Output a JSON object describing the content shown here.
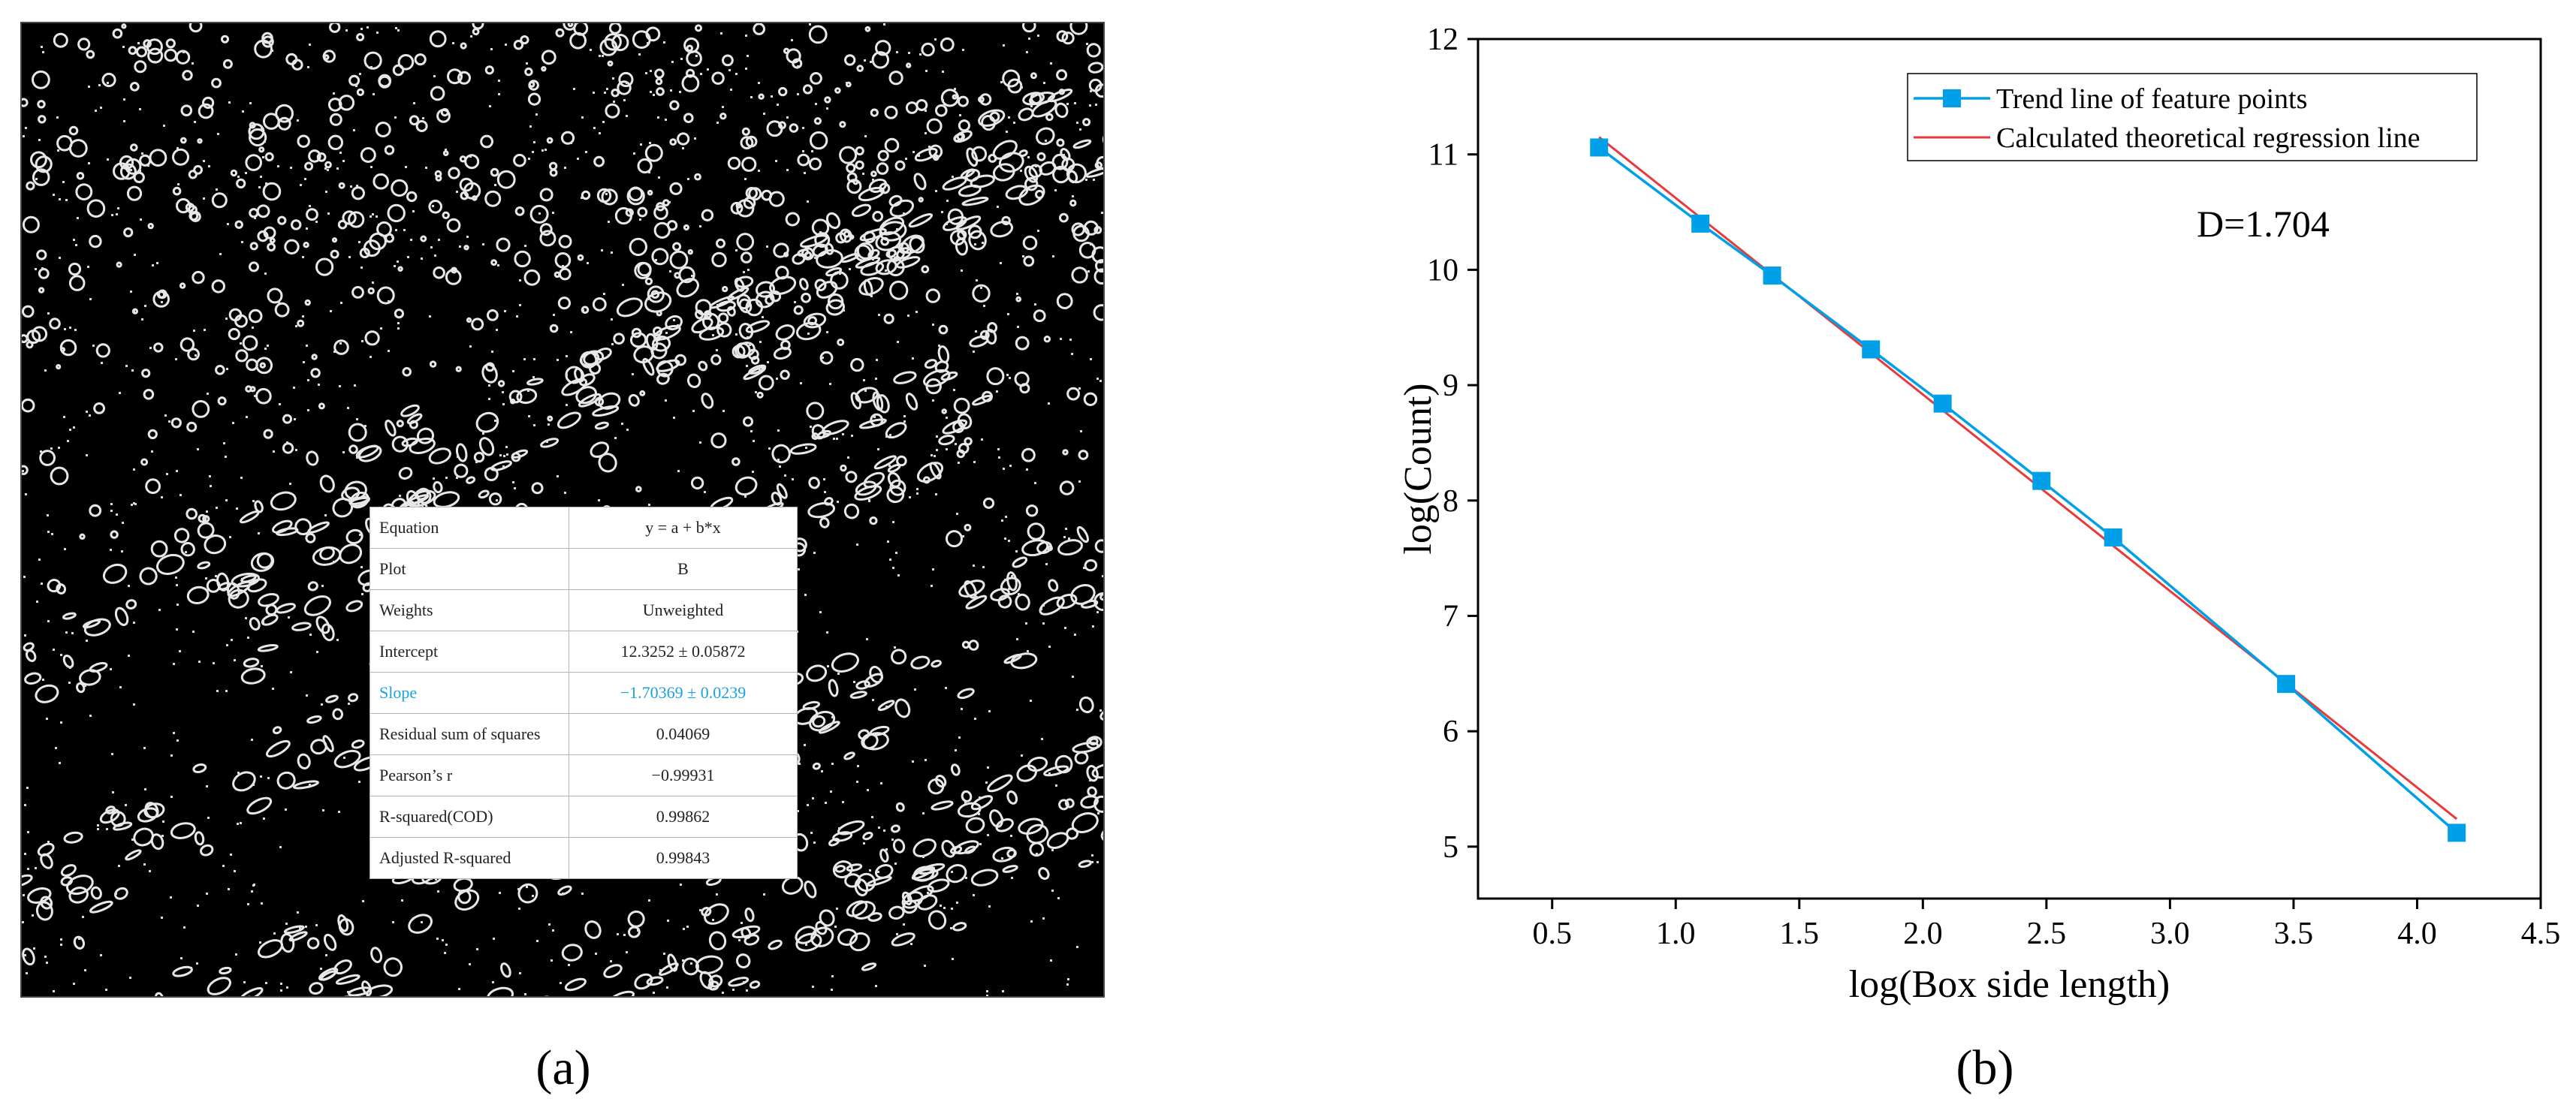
{
  "panels": {
    "a_label": "(a)",
    "b_label": "(b)"
  },
  "chart_data": {
    "type": "line",
    "xlabel": "log(Box side length)",
    "ylabel": "log(Count)",
    "xlim": [
      0.2,
      4.5
    ],
    "ylim": [
      4.55,
      12
    ],
    "xticks": [
      "0.5",
      "1.0",
      "1.5",
      "2.0",
      "2.5",
      "3.0",
      "3.5",
      "4.0",
      "4.5"
    ],
    "yticks": [
      "5",
      "6",
      "7",
      "8",
      "9",
      "10",
      "11",
      "12"
    ],
    "legend_position": "top-right",
    "annotation": "D=1.704",
    "series": [
      {
        "name": "Trend line of feature points",
        "color": "#00a0e9",
        "marker": "square",
        "x": [
          0.69,
          1.1,
          1.39,
          1.79,
          2.08,
          2.48,
          2.77,
          3.47,
          4.16
        ],
        "y": [
          11.06,
          10.4,
          9.95,
          9.31,
          8.84,
          8.17,
          7.68,
          6.41,
          5.12
        ]
      },
      {
        "name": "Calculated theoretical regression line",
        "color": "#e83a3a",
        "marker": "none",
        "x": [
          0.69,
          4.16
        ],
        "y": [
          11.15,
          5.24
        ]
      }
    ],
    "stats_table": {
      "rows": [
        {
          "label": "Equation",
          "value": "y = a + b*x"
        },
        {
          "label": "Plot",
          "value": "B"
        },
        {
          "label": "Weights",
          "value": "Unweighted"
        },
        {
          "label": "Intercept",
          "value": "12.3252 ± 0.05872"
        },
        {
          "label": "Slope",
          "value": "−1.70369 ± 0.0239"
        },
        {
          "label": "Residual sum of squares",
          "value": "0.04069"
        },
        {
          "label": "Pearson’s r",
          "value": "−0.99931"
        },
        {
          "label": "R-squared(COD)",
          "value": "0.99862"
        },
        {
          "label": "Adjusted R-squared",
          "value": "0.99843"
        }
      ]
    }
  }
}
